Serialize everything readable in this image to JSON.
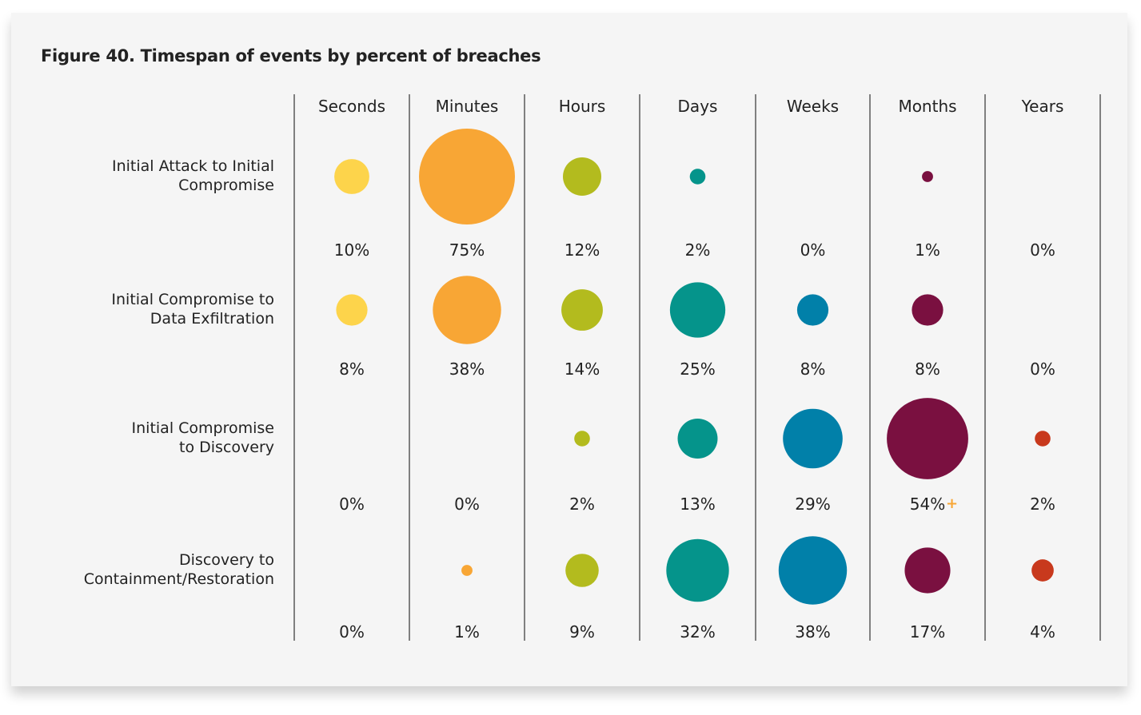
{
  "chart_data": {
    "type": "bubble",
    "title": "Figure 40. Timespan of events by percent of breaches",
    "columns": [
      "Seconds",
      "Minutes",
      "Hours",
      "Days",
      "Weeks",
      "Months",
      "Years"
    ],
    "colors": [
      "#fdd44b",
      "#f8a635",
      "#b3bb1e",
      "#05948b",
      "#0180a9",
      "#7a1040",
      "#c8391d"
    ],
    "rows": [
      {
        "label": [
          "Initial Attack to Initial",
          "Compromise"
        ],
        "values": [
          10,
          75,
          12,
          2,
          0,
          1,
          0
        ],
        "labels": [
          "10%",
          "75%",
          "12%",
          "2%",
          "0%",
          "1%",
          "0%"
        ]
      },
      {
        "label": [
          "Initial Compromise to",
          "Data Exfiltration"
        ],
        "values": [
          8,
          38,
          14,
          25,
          8,
          8,
          0
        ],
        "labels": [
          "8%",
          "38%",
          "14%",
          "25%",
          "8%",
          "8%",
          "0%"
        ]
      },
      {
        "label": [
          "Initial Compromise",
          "to Discovery"
        ],
        "values": [
          0,
          0,
          2,
          13,
          29,
          54,
          2
        ],
        "labels": [
          "0%",
          "0%",
          "2%",
          "13%",
          "29%",
          "54%",
          "2%"
        ]
      },
      {
        "label": [
          "Discovery to",
          "Containment/Restoration"
        ],
        "values": [
          0,
          1,
          9,
          32,
          38,
          17,
          4
        ],
        "labels": [
          "0%",
          "1%",
          "9%",
          "32%",
          "38%",
          "17%",
          "4%"
        ]
      }
    ],
    "annotations": [
      {
        "row": 2,
        "column": 5,
        "text": "+",
        "color": "#f8a635"
      }
    ]
  }
}
